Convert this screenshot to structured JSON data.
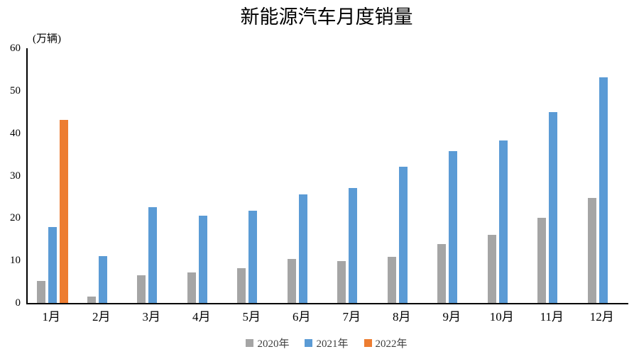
{
  "chart_data": {
    "type": "bar",
    "title": "新能源汽车月度销量",
    "ylabel": "(万辆)",
    "xlabel": "",
    "categories": [
      "1月",
      "2月",
      "3月",
      "4月",
      "5月",
      "6月",
      "7月",
      "8月",
      "9月",
      "10月",
      "11月",
      "12月"
    ],
    "series": [
      {
        "name": "2020年",
        "color": "#A5A5A5",
        "values": [
          5.2,
          1.5,
          6.6,
          7.2,
          8.2,
          10.4,
          9.8,
          10.9,
          13.8,
          16.0,
          20.0,
          24.8
        ]
      },
      {
        "name": "2021年",
        "color": "#5B9BD5",
        "values": [
          17.9,
          11.0,
          22.6,
          20.6,
          21.7,
          25.6,
          27.1,
          32.1,
          35.7,
          38.3,
          45.0,
          53.1
        ]
      },
      {
        "name": "2022年",
        "color": "#ED7D31",
        "values": [
          43.1,
          null,
          null,
          null,
          null,
          null,
          null,
          null,
          null,
          null,
          null,
          null
        ]
      }
    ],
    "ylim": [
      0,
      60
    ],
    "yticks": [
      0,
      10,
      20,
      30,
      40,
      50,
      60
    ],
    "grid": false,
    "legend_position": "bottom",
    "axis_color": "#000000",
    "background_color": "#FFFFFF"
  }
}
